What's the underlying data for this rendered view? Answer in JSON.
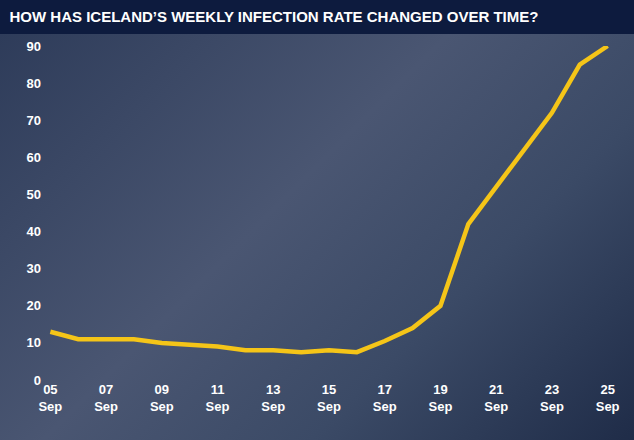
{
  "chart_data": {
    "type": "line",
    "title": "HOW HAS ICELAND’S WEEKLY INFECTION RATE CHANGED OVER TIME?",
    "categories": [
      "05 Sep",
      null,
      "07 Sep",
      null,
      "09 Sep",
      null,
      "11 Sep",
      null,
      "13 Sep",
      null,
      "15 Sep",
      null,
      "17 Sep",
      null,
      "19 Sep",
      null,
      "21 Sep",
      null,
      "23 Sep",
      null,
      "25 Sep"
    ],
    "values": [
      13,
      11,
      11,
      11,
      10,
      9.5,
      9,
      8,
      8,
      7.5,
      8,
      7.5,
      10.5,
      14,
      20,
      42,
      52,
      62,
      72,
      85,
      90
    ],
    "color": "#f5c518",
    "ylim": [
      0,
      90
    ],
    "yticks": [
      0,
      10,
      20,
      30,
      40,
      50,
      60,
      70,
      80,
      90
    ],
    "grid": false
  }
}
